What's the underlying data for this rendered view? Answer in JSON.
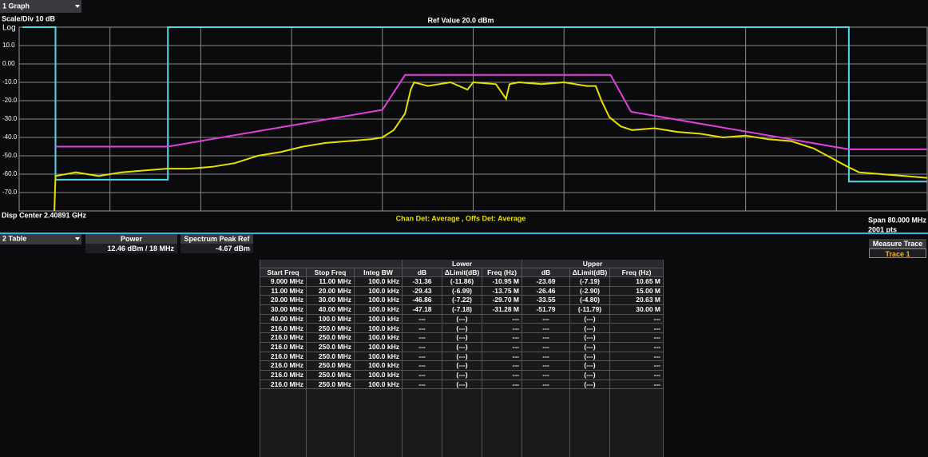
{
  "header": {
    "menu": "1 Graph",
    "scale": "Scale/Div 10 dB",
    "scale_type": "Log",
    "ref_value": "Ref Value 20.0 dBm"
  },
  "chart_data": {
    "type": "line",
    "xlim": [
      -40,
      40
    ],
    "ylim": [
      -80,
      20
    ],
    "xticks": [
      -32,
      -24,
      -16,
      -8,
      0,
      8,
      16,
      24,
      32
    ],
    "yticks": [
      {
        "value": 10,
        "label": "10.0"
      },
      {
        "value": 0,
        "label": "0.00"
      },
      {
        "value": -10,
        "label": "-10.0"
      },
      {
        "value": -20,
        "label": "-20.0"
      },
      {
        "value": -30,
        "label": "-30.0"
      },
      {
        "value": -40,
        "label": "-40.0"
      },
      {
        "value": -50,
        "label": "-50.0"
      },
      {
        "value": -60,
        "label": "-60.0"
      },
      {
        "value": -70,
        "label": "-70.0"
      }
    ],
    "grid": true,
    "series": [
      {
        "color": "#4fd8e8",
        "x": [
          -39.7,
          -36.8,
          -36.8,
          -26.9,
          -26.9,
          33.1,
          33.1,
          40
        ],
        "values": [
          20,
          20,
          -63,
          -63,
          20,
          20,
          -64,
          -64
        ]
      },
      {
        "color": "#e040e0",
        "x": [
          -36.8,
          -26.9,
          -8,
          -6,
          12.1,
          13.9,
          33.1,
          40
        ],
        "values": [
          -45,
          -45,
          -25,
          -6,
          -6,
          -26,
          -46.5,
          -46.5
        ]
      },
      {
        "color": "#e8e000",
        "x": [
          -36.9,
          -36.8,
          -35,
          -33,
          -31,
          -29,
          -27,
          -25,
          -23,
          -21,
          -19,
          -17,
          -15,
          -13,
          -11,
          -9,
          -8,
          -7,
          -6,
          -5.5,
          -5.2,
          -4,
          -2,
          -0.5,
          0,
          2,
          2.9,
          3.2,
          4,
          6,
          8,
          10,
          10.8,
          11.3,
          12,
          13,
          14,
          16,
          18,
          20,
          22,
          24,
          26,
          28,
          30,
          31.5,
          33,
          34,
          36,
          38,
          40
        ],
        "values": [
          -80,
          -61,
          -59,
          -61,
          -59,
          -58,
          -57,
          -57,
          -56,
          -54,
          -50,
          -48,
          -45,
          -43,
          -42,
          -41,
          -40,
          -36,
          -27,
          -14,
          -10,
          -12,
          -10,
          -14,
          -10,
          -11,
          -19,
          -11,
          -10,
          -11,
          -10,
          -12,
          -12,
          -20,
          -29,
          -34,
          -36,
          -35,
          -37,
          -38,
          -40,
          -39,
          -41,
          -42,
          -46,
          -51,
          -56,
          -59,
          -60,
          -61,
          -62
        ]
      }
    ]
  },
  "footer": {
    "center": "Disp Center 2.40891 GHz",
    "detector": "Chan Det: Average , Offs Det: Average",
    "span": "Span 80.000 MHz",
    "points": "2001 pts"
  },
  "panel": {
    "menu": "2 Table",
    "power_label": "Power",
    "power_value": "12.46 dBm / 18 MHz",
    "peak_label": "Spectrum Peak Ref",
    "peak_value": "-4.67 dBm",
    "measure_label": "Measure Trace",
    "measure_value": "Trace 1"
  },
  "table": {
    "groups": [
      "Lower",
      "Upper"
    ],
    "columns": [
      "Start Freq",
      "Stop Freq",
      "Integ BW",
      "dB",
      "ΔLimit(dB)",
      "Freq (Hz)",
      "dB",
      "ΔLimit(dB)",
      "Freq (Hz)"
    ],
    "rows": [
      [
        "9.000 MHz",
        "11.00 MHz",
        "100.0 kHz",
        "-31.36",
        "(-11.86)",
        "-10.95 M",
        "-23.69",
        "(-7.19)",
        "10.65 M"
      ],
      [
        "11.00 MHz",
        "20.00 MHz",
        "100.0 kHz",
        "-29.43",
        "(-6.99)",
        "-13.75 M",
        "-26.46",
        "(-2.90)",
        "15.00 M"
      ],
      [
        "20.00 MHz",
        "30.00 MHz",
        "100.0 kHz",
        "-46.86",
        "(-7.22)",
        "-29.70 M",
        "-33.55",
        "(-4.80)",
        "20.63 M"
      ],
      [
        "30.00 MHz",
        "40.00 MHz",
        "100.0 kHz",
        "-47.18",
        "(-7.18)",
        "-31.28 M",
        "-51.79",
        "(-11.79)",
        "30.00 M"
      ],
      [
        "40.00 MHz",
        "100.0 MHz",
        "100.0 kHz",
        "---",
        "(---)",
        "---",
        "---",
        "(---)",
        "---"
      ],
      [
        "216.0 MHz",
        "250.0 MHz",
        "100.0 kHz",
        "---",
        "(---)",
        "---",
        "---",
        "(---)",
        "---"
      ],
      [
        "216.0 MHz",
        "250.0 MHz",
        "100.0 kHz",
        "---",
        "(---)",
        "---",
        "---",
        "(---)",
        "---"
      ],
      [
        "216.0 MHz",
        "250.0 MHz",
        "100.0 kHz",
        "---",
        "(---)",
        "---",
        "---",
        "(---)",
        "---"
      ],
      [
        "216.0 MHz",
        "250.0 MHz",
        "100.0 kHz",
        "---",
        "(---)",
        "---",
        "---",
        "(---)",
        "---"
      ],
      [
        "216.0 MHz",
        "250.0 MHz",
        "100.0 kHz",
        "---",
        "(---)",
        "---",
        "---",
        "(---)",
        "---"
      ],
      [
        "216.0 MHz",
        "250.0 MHz",
        "100.0 kHz",
        "---",
        "(---)",
        "---",
        "---",
        "(---)",
        "---"
      ],
      [
        "216.0 MHz",
        "250.0 MHz",
        "100.0 kHz",
        "---",
        "(---)",
        "---",
        "---",
        "(---)",
        "---"
      ]
    ]
  }
}
